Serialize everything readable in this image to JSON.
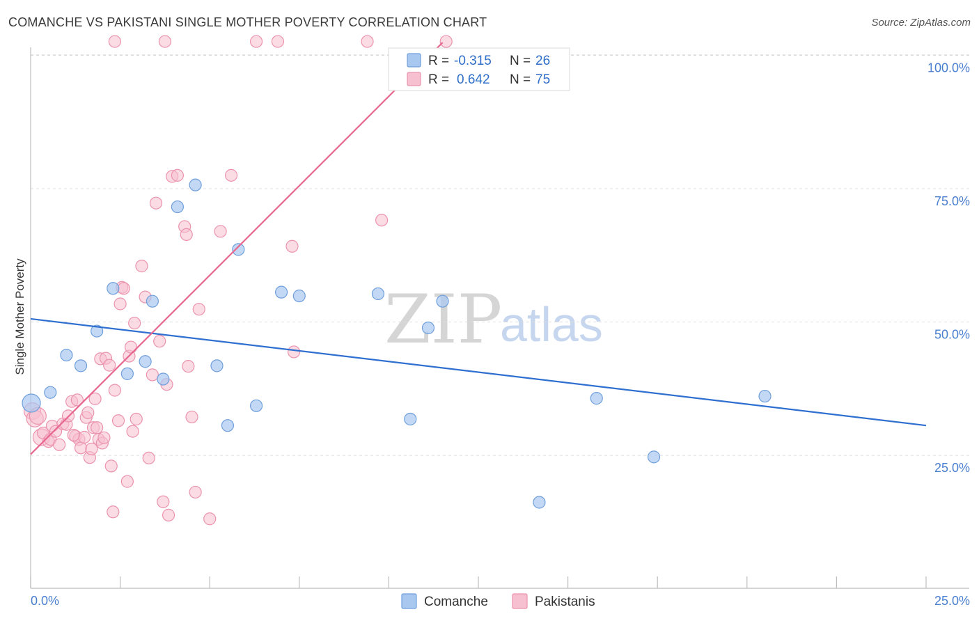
{
  "header": {
    "title": "COMANCHE VS PAKISTANI SINGLE MOTHER POVERTY CORRELATION CHART",
    "source": "Source: ZipAtlas.com"
  },
  "watermark": {
    "zip": "ZIP",
    "atlas": "atlas"
  },
  "legend": {
    "r_label": "R =",
    "n_label": "N =",
    "rows": [
      {
        "name": "Comanche",
        "r": "-0.315",
        "n": "26"
      },
      {
        "name": "Pakistanis",
        "r": "0.642",
        "n": "75"
      }
    ]
  },
  "colors": {
    "comanche_fill": "#a9c8ef",
    "comanche_stroke": "#6f9fdc",
    "comanche_line": "#2e6fd0",
    "pakistani_fill": "#f7c0d0",
    "pakistani_stroke": "#eb93ad",
    "pakistani_line": "#e8678f",
    "tick_text": "#4a7fd0"
  },
  "chart_data": {
    "type": "scatter",
    "title": "COMANCHE VS PAKISTANI SINGLE MOTHER POVERTY CORRELATION CHART",
    "xlabel": "",
    "ylabel": "Single Mother Poverty",
    "xlim": [
      0,
      25
    ],
    "ylim": [
      0,
      100
    ],
    "x_tick_labels": [
      "0.0%",
      "25.0%"
    ],
    "y_tick_labels": [
      "100.0%",
      "75.0%",
      "50.0%",
      "25.0%"
    ],
    "y_tick_values": [
      100,
      75,
      50,
      25
    ],
    "grid": true,
    "legend_position": "bottom-center",
    "series": [
      {
        "name": "Comanche",
        "r": -0.315,
        "n": 26,
        "trend": {
          "x": [
            0,
            25
          ],
          "y": [
            50.6,
            30.6
          ]
        },
        "points": [
          [
            0.02,
            34.8
          ],
          [
            0.55,
            36.8
          ],
          [
            1.0,
            43.8
          ],
          [
            1.4,
            41.8
          ],
          [
            1.85,
            48.3
          ],
          [
            2.3,
            56.3
          ],
          [
            2.7,
            40.3
          ],
          [
            3.2,
            42.6
          ],
          [
            3.4,
            53.9
          ],
          [
            3.7,
            39.3
          ],
          [
            4.1,
            71.6
          ],
          [
            4.6,
            75.7
          ],
          [
            5.2,
            41.8
          ],
          [
            5.5,
            30.6
          ],
          [
            5.8,
            63.6
          ],
          [
            6.3,
            34.3
          ],
          [
            7.0,
            55.6
          ],
          [
            7.5,
            54.9
          ],
          [
            9.7,
            55.3
          ],
          [
            10.6,
            31.8
          ],
          [
            11.1,
            48.9
          ],
          [
            11.5,
            53.9
          ],
          [
            14.2,
            16.2
          ],
          [
            15.8,
            35.7
          ],
          [
            17.4,
            24.7
          ],
          [
            20.5,
            36.1
          ]
        ]
      },
      {
        "name": "Pakistanis",
        "r": 0.642,
        "n": 75,
        "trend": {
          "x": [
            0,
            11.5
          ],
          "y": [
            25.2,
            102.4
          ]
        },
        "points": [
          [
            0.05,
            33.3
          ],
          [
            0.12,
            31.9
          ],
          [
            0.2,
            32.4
          ],
          [
            0.3,
            28.4
          ],
          [
            0.35,
            29.2
          ],
          [
            0.5,
            27.6
          ],
          [
            0.55,
            28.0
          ],
          [
            0.6,
            30.5
          ],
          [
            0.7,
            29.5
          ],
          [
            0.8,
            27.0
          ],
          [
            0.9,
            30.9
          ],
          [
            1.0,
            30.8
          ],
          [
            1.05,
            32.4
          ],
          [
            1.15,
            35.1
          ],
          [
            1.25,
            28.6
          ],
          [
            1.3,
            35.4
          ],
          [
            1.35,
            28.0
          ],
          [
            1.4,
            26.4
          ],
          [
            1.5,
            28.4
          ],
          [
            1.55,
            32.1
          ],
          [
            1.6,
            33.0
          ],
          [
            1.65,
            24.6
          ],
          [
            1.7,
            26.2
          ],
          [
            1.75,
            30.2
          ],
          [
            1.8,
            35.6
          ],
          [
            1.85,
            30.2
          ],
          [
            1.9,
            28.0
          ],
          [
            1.95,
            43.1
          ],
          [
            2.0,
            27.3
          ],
          [
            2.1,
            43.2
          ],
          [
            2.2,
            41.9
          ],
          [
            2.25,
            23.0
          ],
          [
            2.3,
            14.4
          ],
          [
            2.35,
            37.2
          ],
          [
            2.45,
            31.5
          ],
          [
            2.5,
            53.4
          ],
          [
            2.55,
            56.5
          ],
          [
            2.6,
            56.3
          ],
          [
            2.7,
            20.1
          ],
          [
            2.75,
            43.6
          ],
          [
            2.8,
            45.3
          ],
          [
            2.85,
            29.5
          ],
          [
            2.9,
            49.8
          ],
          [
            2.95,
            31.8
          ],
          [
            3.1,
            60.5
          ],
          [
            3.2,
            54.7
          ],
          [
            3.3,
            24.5
          ],
          [
            3.4,
            40.1
          ],
          [
            3.5,
            72.3
          ],
          [
            3.6,
            46.4
          ],
          [
            3.7,
            16.3
          ],
          [
            3.8,
            38.3
          ],
          [
            3.85,
            13.8
          ],
          [
            3.95,
            77.3
          ],
          [
            4.1,
            77.5
          ],
          [
            4.3,
            67.9
          ],
          [
            4.35,
            66.4
          ],
          [
            4.4,
            41.7
          ],
          [
            4.5,
            32.2
          ],
          [
            4.6,
            18.1
          ],
          [
            4.7,
            52.4
          ],
          [
            5.0,
            13.1
          ],
          [
            5.3,
            67.0
          ],
          [
            5.6,
            77.5
          ],
          [
            7.3,
            64.2
          ],
          [
            7.35,
            44.4
          ],
          [
            9.8,
            69.1
          ],
          [
            2.35,
            102.6
          ],
          [
            3.75,
            102.6
          ],
          [
            6.3,
            102.6
          ],
          [
            6.9,
            102.6
          ],
          [
            9.4,
            102.6
          ],
          [
            11.6,
            102.6
          ],
          [
            1.2,
            28.8
          ],
          [
            2.05,
            28.3
          ]
        ]
      }
    ]
  }
}
